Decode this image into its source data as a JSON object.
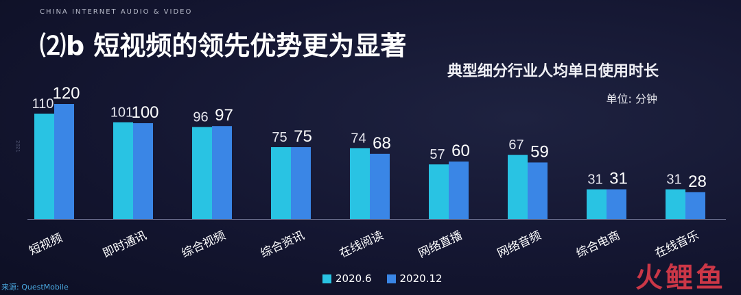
{
  "header": {
    "caption": "CHINA INTERNET AUDIO & VIDEO",
    "headline": "⑵b 短视频的领先优势更为显著"
  },
  "side_mark": "2021",
  "source": "来源: QuestMobile",
  "logo_text": "火鲤鱼",
  "colors": {
    "series_2020_6": "#29c3e3",
    "series_2020_12": "#3a86e6"
  },
  "chart_data": {
    "type": "bar",
    "title": "典型细分行业人均单日使用时长",
    "unit": "单位: 分钟",
    "categories": [
      "短视频",
      "即时通讯",
      "综合视频",
      "综合资讯",
      "在线阅读",
      "网络直播",
      "网络音频",
      "综合电商",
      "在线音乐"
    ],
    "series": [
      {
        "name": "2020.6",
        "values": [
          110,
          101,
          96,
          75,
          74,
          57,
          67,
          31,
          31
        ]
      },
      {
        "name": "2020.12",
        "values": [
          120,
          100,
          97,
          75,
          68,
          60,
          59,
          31,
          28
        ]
      }
    ],
    "ylim": [
      0,
      140
    ],
    "legend_position": "bottom",
    "grid": false
  }
}
